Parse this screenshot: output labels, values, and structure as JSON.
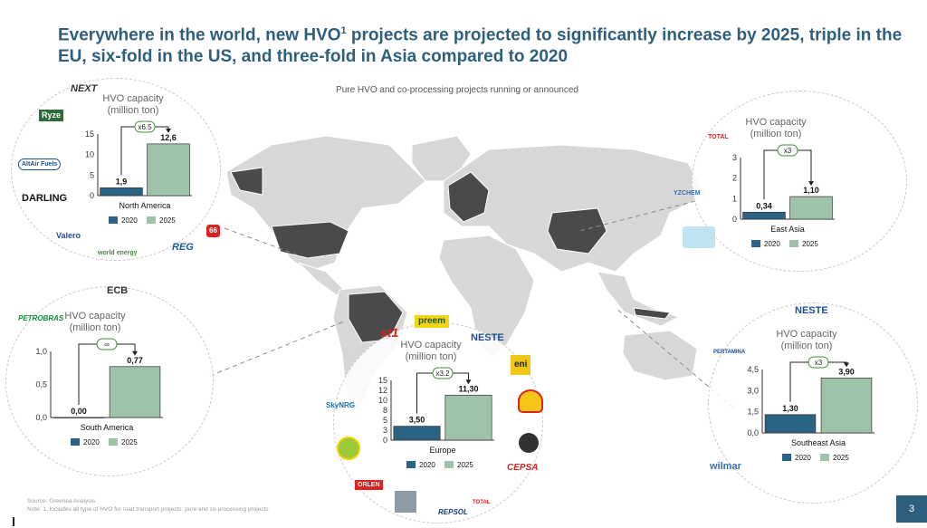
{
  "header": {
    "title_part1": "Everywhere in the world, new HVO",
    "title_sup": "1",
    "title_part2": " projects are projected to significantly increase by 2025, triple in the EU, six-fold in the US, and three-fold in Asia compared to 2020",
    "subtitle": "Pure HVO and co-processing projects running or announced"
  },
  "colors": {
    "y2020": "#2b6384",
    "y2025": "#9ec3a8",
    "accent": "#2e5f7e",
    "map_land": "#d7d7d7",
    "map_highlight": "#4a4a4a"
  },
  "legend": {
    "y2020": "2020",
    "y2025": "2025"
  },
  "panel_title": {
    "line1": "HVO capacity",
    "line2": "(million ton)"
  },
  "chart_data": [
    {
      "type": "bar",
      "region": "North America",
      "categories": [
        "2020",
        "2025"
      ],
      "values": [
        1.9,
        12.6
      ],
      "value_labels": [
        "1,9",
        "12,6"
      ],
      "growth": "x6.5",
      "ylim": [
        0,
        15
      ],
      "yticks": [
        "0",
        "5",
        "10",
        "15"
      ]
    },
    {
      "type": "bar",
      "region": "East Asia",
      "categories": [
        "2020",
        "2025"
      ],
      "values": [
        0.34,
        1.1
      ],
      "value_labels": [
        "0,34",
        "1,10"
      ],
      "growth": "x3",
      "ylim": [
        0,
        3
      ],
      "yticks": [
        "0",
        "1",
        "2",
        "3"
      ]
    },
    {
      "type": "bar",
      "region": "South America",
      "categories": [
        "2020",
        "2025"
      ],
      "values": [
        0.0,
        0.77
      ],
      "value_labels": [
        "0,00",
        "0,77"
      ],
      "growth": "∞",
      "ylim": [
        0,
        1
      ],
      "yticks": [
        "0,0",
        "0,5",
        "1,0"
      ]
    },
    {
      "type": "bar",
      "region": "Europe",
      "categories": [
        "2020",
        "2025"
      ],
      "values": [
        3.5,
        11.3
      ],
      "value_labels": [
        "3,50",
        "11,30"
      ],
      "growth": "x3.2",
      "ylim": [
        0,
        15
      ],
      "yticks": [
        "0",
        "3",
        "5",
        "8",
        "10",
        "12",
        "15"
      ]
    },
    {
      "type": "bar",
      "region": "Southeast Asia",
      "categories": [
        "2020",
        "2025"
      ],
      "values": [
        1.3,
        3.9
      ],
      "value_labels": [
        "1,30",
        "3,90"
      ],
      "growth": "x3",
      "ylim": [
        0,
        4.5
      ],
      "yticks": [
        "0,0",
        "1,5",
        "3,0",
        "4,5"
      ]
    }
  ],
  "logos": {
    "next": "NEXT",
    "ryze": "Ryze",
    "altair": "AltAir Fuels",
    "darling": "DARLING",
    "valero": "Valero",
    "worldenergy": "world energy",
    "reg": "REG",
    "p66": "66",
    "total": "TOTAL",
    "yzchem": "YZCHEM",
    "ecb": "ECB",
    "petrobras": "PETROBRAS",
    "st1": "st1",
    "preem": "preem",
    "neste": "NESTE",
    "eni": "eni",
    "cepsa": "CEPSA",
    "skynrg": "SkyNRG",
    "orlen": "ORLEN",
    "repsol": "REPSOL",
    "pertamina": "PERTAMINA",
    "wilmar": "wilmar"
  },
  "footer": {
    "source": "Source: Greenea Analysis",
    "note": "Note: 1. Includes all type of HVO for road transport projects: pure and co-processing projects"
  },
  "page_number": "3"
}
